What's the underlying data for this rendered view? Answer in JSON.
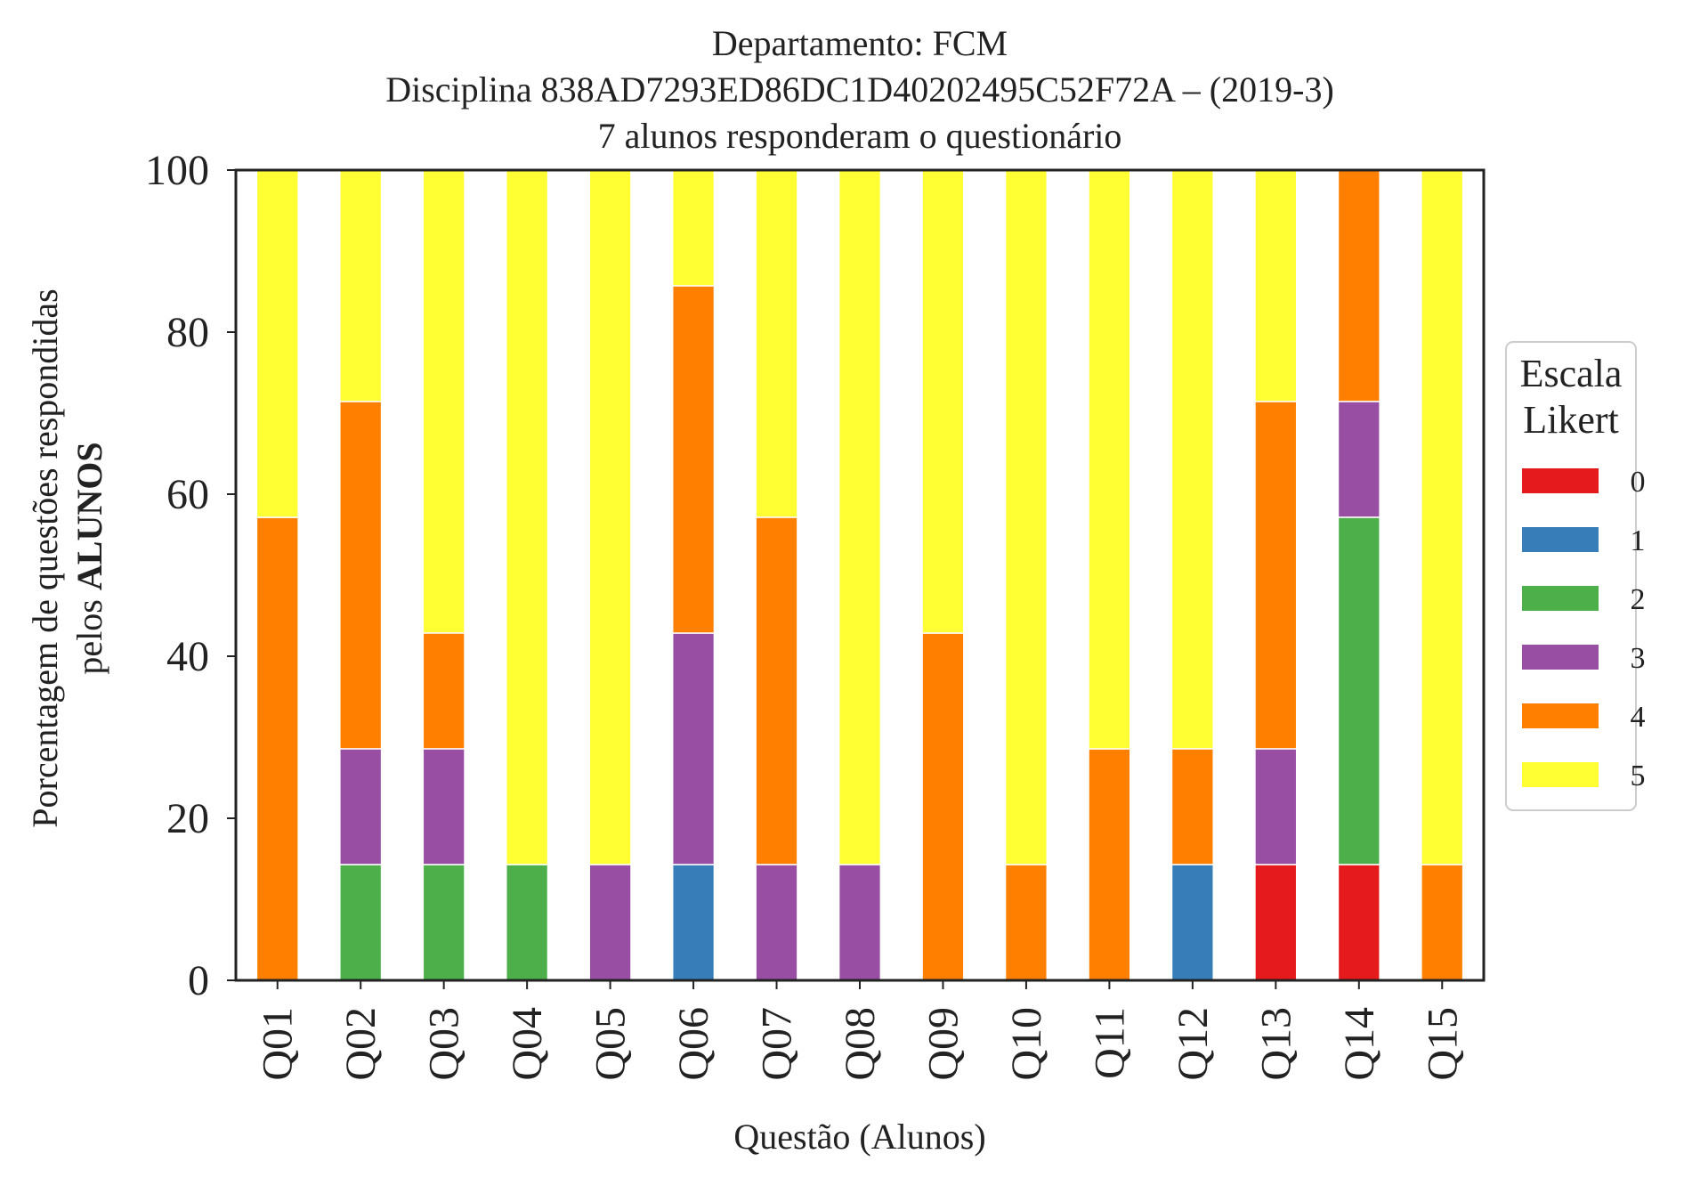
{
  "chart_data": {
    "type": "bar",
    "stacked": true,
    "title_lines": [
      "Departamento: FCM",
      "Disciplina 838AD7293ED86DC1D40202495C52F72A – (2019-3)",
      "7 alunos responderam o questionário"
    ],
    "ylabel_line1": "Porcentagem de questões respondidas",
    "ylabel_line2_prefix": "pelos ",
    "ylabel_line2_bold": "ALUNOS",
    "xlabel": "Questão (Alunos)",
    "ylim": [
      0,
      100
    ],
    "yticks": [
      "0",
      "20",
      "40",
      "60",
      "80",
      "100"
    ],
    "grid": false,
    "legend": {
      "title_line1": "Escala",
      "title_line2": "Likert",
      "placement": "right-outside"
    },
    "categories": [
      "Q01",
      "Q02",
      "Q03",
      "Q04",
      "Q05",
      "Q06",
      "Q07",
      "Q08",
      "Q09",
      "Q10",
      "Q11",
      "Q12",
      "Q13",
      "Q14",
      "Q15"
    ],
    "series": [
      {
        "name": "0",
        "color": "#e41a1c",
        "values": [
          0,
          0,
          0,
          0,
          0,
          0,
          0,
          0,
          0,
          0,
          0,
          0,
          14.29,
          14.29,
          0
        ]
      },
      {
        "name": "1",
        "color": "#377eb8",
        "values": [
          0,
          0,
          0,
          0,
          0,
          14.29,
          0,
          0,
          0,
          0,
          0,
          14.29,
          0,
          0,
          0
        ]
      },
      {
        "name": "2",
        "color": "#4daf4a",
        "values": [
          0,
          14.29,
          14.29,
          14.29,
          0,
          0,
          0,
          0,
          0,
          0,
          0,
          0,
          0,
          42.86,
          0
        ]
      },
      {
        "name": "3",
        "color": "#984ea3",
        "values": [
          0,
          14.29,
          14.29,
          0,
          14.29,
          28.57,
          14.29,
          14.29,
          0,
          0,
          0,
          0,
          14.29,
          14.29,
          0
        ]
      },
      {
        "name": "4",
        "color": "#ff7f00",
        "values": [
          57.14,
          42.86,
          14.29,
          0,
          0,
          42.86,
          42.86,
          0,
          42.86,
          14.29,
          28.57,
          14.29,
          42.86,
          28.57,
          14.29
        ]
      },
      {
        "name": "5",
        "color": "#ffff33",
        "values": [
          42.86,
          28.57,
          57.14,
          85.71,
          85.71,
          14.29,
          42.86,
          85.71,
          57.14,
          85.71,
          71.43,
          71.43,
          28.57,
          0,
          85.71
        ]
      }
    ]
  }
}
